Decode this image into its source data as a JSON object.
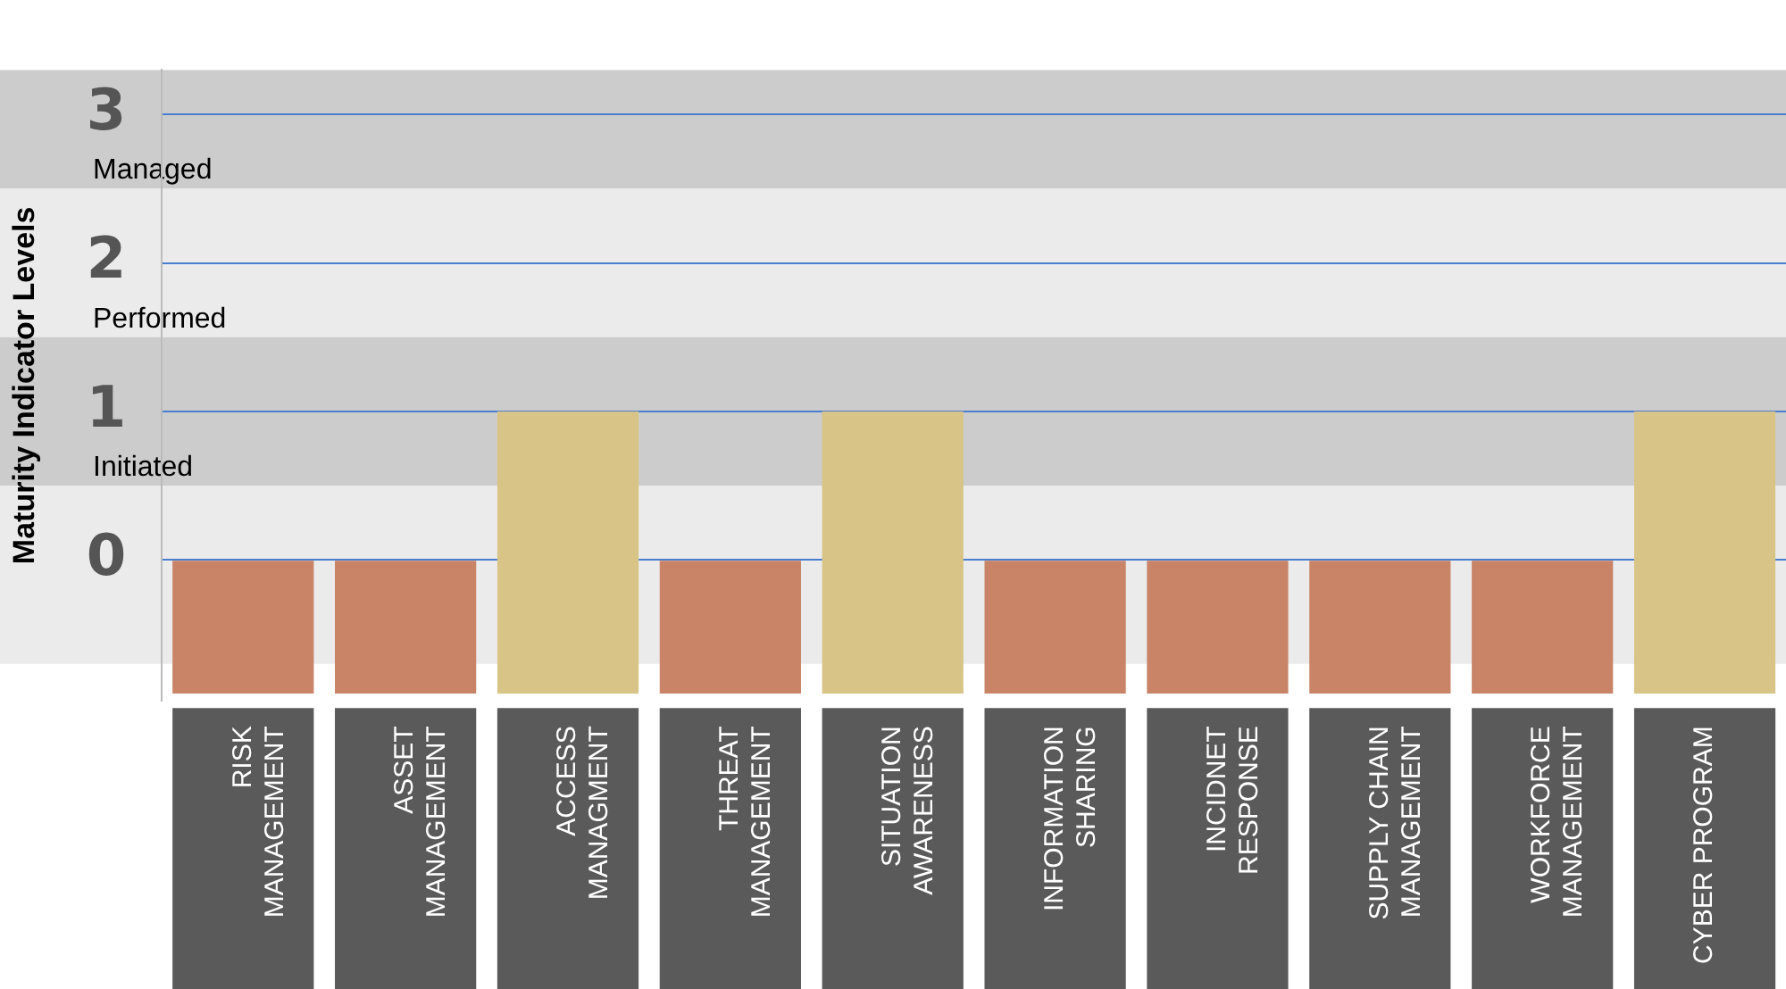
{
  "chart_data": {
    "type": "bar",
    "ylabel": "Maturity Indicator Levels",
    "categories": [
      "RISK MANAGEMENT",
      "ASSET MANAGEMENT",
      "ACCESS MANAGMENT",
      "THREAT MANAGEMENT",
      "SITUATION AWARENESS",
      "INFORMATION SHARING",
      "INCIDNET RESPONSE",
      "SUPPLY CHAIN MANAGEMENT",
      "WORKFORCE MANAGEMENT",
      "CYBER PROGRAM"
    ],
    "base": [
      -0.9,
      -0.9,
      -0.9,
      -0.9,
      -0.9,
      -0.9,
      -0.9,
      -0.9,
      -0.9,
      -0.9
    ],
    "values": [
      0.9,
      0.9,
      1.9,
      0.9,
      1.9,
      0.9,
      0.9,
      0.9,
      0.9,
      1.9
    ],
    "colors": [
      "#c98468",
      "#c98468",
      "#d8c486",
      "#c98468",
      "#d8c486",
      "#c98468",
      "#c98468",
      "#c98468",
      "#c98468",
      "#d8c486"
    ],
    "ylim": [
      -0.95,
      3.3
    ],
    "yticks": [
      0,
      1,
      2,
      3
    ],
    "grid": "y",
    "bands": [
      {
        "axis": "y",
        "from": 2.5,
        "to": 3.3,
        "label": "Managed",
        "color": "#cccccc"
      },
      {
        "axis": "y",
        "from": 1.5,
        "to": 2.5,
        "label": "Performed",
        "color": "#ebebeb"
      },
      {
        "axis": "y",
        "from": 0.5,
        "to": 1.5,
        "label": "Initiated",
        "color": "#cccccc"
      },
      {
        "axis": "y",
        "from": -0.7,
        "to": 0.5,
        "label": null,
        "color": "#ebebeb"
      }
    ],
    "legend": false
  }
}
